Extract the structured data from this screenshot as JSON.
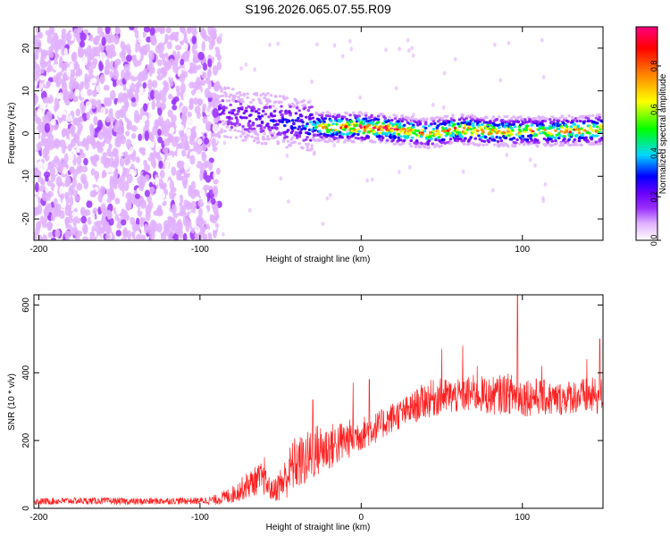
{
  "title": "S196.2026.065.07.55.R09",
  "colors": {
    "snr_line": "#ff2020",
    "axes": "#000000",
    "colormap": [
      "#ffffff",
      "#e0b0ff",
      "#9a30ff",
      "#6a00ff",
      "#0000ff",
      "#00d8ff",
      "#00ff00",
      "#ffff00",
      "#ff8000",
      "#ff0000",
      "#ff0080"
    ]
  },
  "chart_data": [
    {
      "type": "heatmap",
      "name": "spectrogram",
      "xlabel": "Height of straight line (km)",
      "ylabel": "Frequency (Hz)",
      "xlim": [
        -203,
        150
      ],
      "ylim": [
        -25,
        25
      ],
      "xticks": [
        -200,
        -100,
        0,
        100
      ],
      "xtick_labels": [
        "-200",
        "-100",
        "0",
        "100"
      ],
      "yticks": [
        -20,
        -10,
        0,
        10,
        20
      ],
      "ytick_labels": [
        "-20",
        "-10",
        "0",
        "10",
        "20"
      ],
      "noise_region": {
        "x": [
          -203,
          -88
        ],
        "amplitude": "low (0.05-0.15)"
      },
      "signal_ridge": {
        "x": [
          -88,
          -70,
          -50,
          -35,
          -20,
          0,
          20,
          40,
          60,
          80,
          100,
          120,
          150
        ],
        "freq_hz": [
          5,
          4,
          3,
          2,
          1.5,
          1.5,
          1,
          0,
          1,
          0.5,
          0.5,
          0.5,
          1
        ],
        "peak_amplitude": [
          0.3,
          0.35,
          0.4,
          0.5,
          0.9,
          0.95,
          0.95,
          0.85,
          0.9,
          0.9,
          0.8,
          0.85,
          0.9
        ]
      },
      "colorbar": {
        "label": "Normalized spectral amplitude",
        "range": [
          0,
          0.98
        ],
        "ticks": [
          0.0,
          0.2,
          0.4,
          0.6,
          0.8
        ],
        "tick_labels": [
          "0.0",
          "0.2",
          "0.4",
          "0.6",
          "0.8"
        ]
      }
    },
    {
      "type": "line",
      "name": "snr",
      "xlabel": "Height of straight line (km)",
      "ylabel": "SNR (10 * v/v)",
      "xlim": [
        -203,
        150
      ],
      "ylim": [
        0,
        630
      ],
      "xticks": [
        -200,
        -100,
        0,
        100
      ],
      "xtick_labels": [
        "-200",
        "-100",
        "0",
        "100"
      ],
      "yticks": [
        0,
        200,
        400,
        600
      ],
      "ytick_labels": [
        "0",
        "200",
        "400",
        "600"
      ],
      "series": [
        {
          "name": "SNR",
          "x": [
            -203,
            -180,
            -160,
            -140,
            -120,
            -100,
            -90,
            -80,
            -70,
            -62,
            -55,
            -48,
            -42,
            -35,
            -28,
            -20,
            -10,
            0,
            10,
            20,
            30,
            40,
            50,
            60,
            70,
            80,
            90,
            100,
            110,
            120,
            130,
            140,
            150
          ],
          "y": [
            20,
            22,
            22,
            20,
            22,
            22,
            25,
            40,
            70,
            90,
            50,
            80,
            130,
            140,
            170,
            180,
            200,
            220,
            240,
            270,
            290,
            320,
            330,
            330,
            340,
            330,
            340,
            330,
            330,
            320,
            330,
            330,
            330
          ],
          "spread": [
            10,
            10,
            10,
            10,
            10,
            10,
            15,
            25,
            40,
            45,
            30,
            60,
            80,
            80,
            80,
            70,
            60,
            50,
            45,
            45,
            45,
            55,
            55,
            50,
            55,
            55,
            60,
            60,
            55,
            50,
            50,
            55,
            55
          ],
          "spikes": [
            [
              -60,
              150
            ],
            [
              -30,
              320
            ],
            [
              -5,
              370
            ],
            [
              5,
              380
            ],
            [
              50,
              470
            ],
            [
              63,
              480
            ],
            [
              72,
              420
            ],
            [
              97,
              630
            ],
            [
              112,
              420
            ],
            [
              140,
              440
            ],
            [
              148,
              500
            ]
          ]
        }
      ]
    }
  ]
}
